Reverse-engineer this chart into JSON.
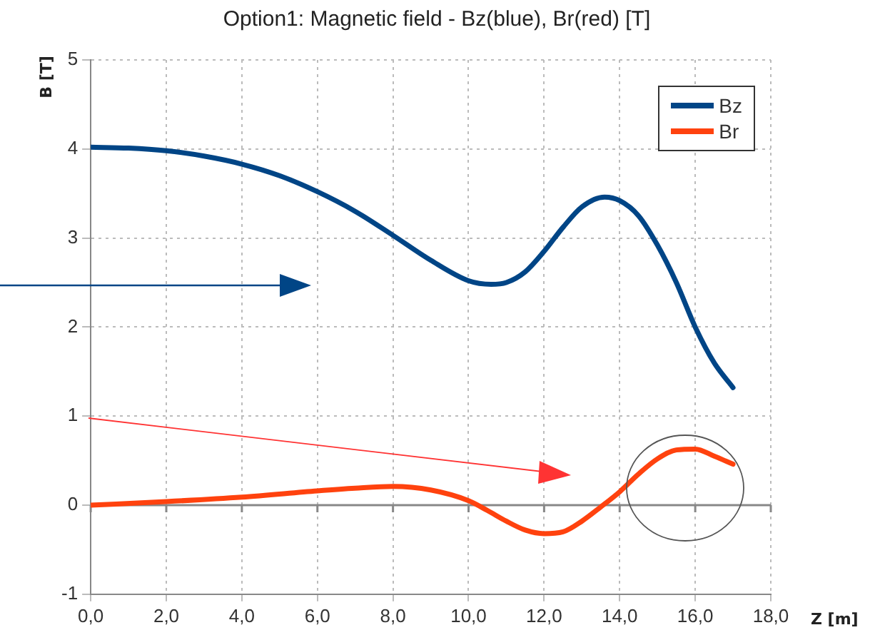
{
  "chart_data": {
    "type": "line",
    "title": "Option1: Magnetic field - Bz(blue), Br(red) [T]",
    "xlabel": "Z [m]",
    "ylabel": "B [T]",
    "xlim": [
      0,
      18
    ],
    "xticks": [
      {
        "value": 0,
        "label": "0,0"
      },
      {
        "value": 2,
        "label": "2,0"
      },
      {
        "value": 4,
        "label": "4,0"
      },
      {
        "value": 6,
        "label": "6,0"
      },
      {
        "value": 8,
        "label": "8,0"
      },
      {
        "value": 10,
        "label": "10,0"
      },
      {
        "value": 12,
        "label": "12,0"
      },
      {
        "value": 14,
        "label": "14,0"
      },
      {
        "value": 16,
        "label": "16,0"
      },
      {
        "value": 18,
        "label": "18,0"
      }
    ],
    "ylim": [
      -1,
      5
    ],
    "yticks": [
      -1,
      0,
      1,
      2,
      3,
      4,
      5
    ],
    "grid": true,
    "legend": "top right",
    "marker": "none",
    "line_style": "solid",
    "series": [
      {
        "name": "Bz",
        "color": "#004586",
        "x": [
          0,
          1,
          2,
          3,
          4,
          5,
          6,
          7,
          8,
          9,
          10,
          10.6,
          11,
          11.5,
          12,
          12.5,
          13,
          13.6,
          14,
          14.5,
          15,
          15.5,
          16,
          16.5,
          17
        ],
        "values": [
          4.02,
          4.01,
          3.98,
          3.92,
          3.83,
          3.7,
          3.52,
          3.3,
          3.03,
          2.75,
          2.52,
          2.48,
          2.5,
          2.62,
          2.85,
          3.12,
          3.35,
          3.46,
          3.42,
          3.25,
          2.92,
          2.5,
          2.0,
          1.6,
          1.32
        ]
      },
      {
        "name": "Br",
        "color": "#ff420e",
        "x": [
          0,
          2,
          4,
          6,
          7,
          8,
          9,
          10,
          10.5,
          11,
          11.5,
          12,
          12.5,
          13,
          13.5,
          14,
          14.5,
          15,
          15.5,
          16,
          16.5,
          17
        ],
        "values": [
          0,
          0.04,
          0.09,
          0.16,
          0.19,
          0.21,
          0.17,
          0.05,
          -0.06,
          -0.18,
          -0.28,
          -0.32,
          -0.3,
          -0.18,
          -0.02,
          0.15,
          0.35,
          0.52,
          0.62,
          0.63,
          0.55,
          0.46
        ]
      }
    ]
  }
}
